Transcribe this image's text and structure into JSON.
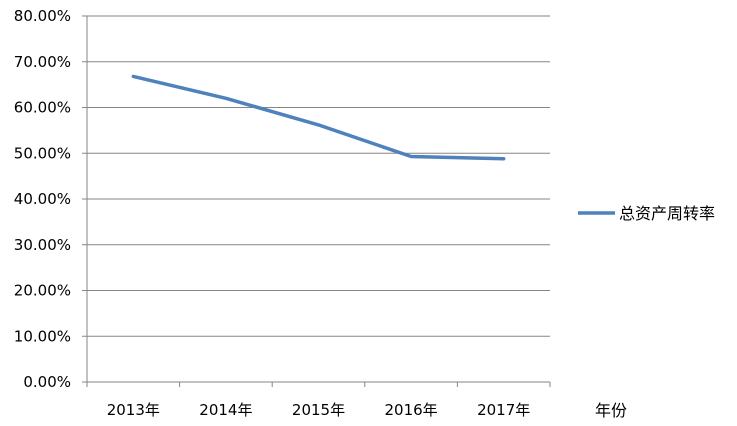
{
  "chart_data": {
    "type": "line",
    "title": "",
    "xlabel": "年份",
    "ylabel": "",
    "categories": [
      "2013年",
      "2014年",
      "2015年",
      "2016年",
      "2017年"
    ],
    "series": [
      {
        "name": "总资产周转率",
        "values": [
          66.8,
          62.0,
          56.2,
          49.3,
          48.8
        ],
        "color": "#4f81bd"
      }
    ],
    "ylim": [
      0,
      80
    ],
    "yticks": [
      0,
      10,
      20,
      30,
      40,
      50,
      60,
      70,
      80
    ],
    "ytick_labels": [
      "0.00%",
      "10.00%",
      "20.00%",
      "30.00%",
      "40.00%",
      "50.00%",
      "60.00%",
      "70.00%",
      "80.00%"
    ],
    "grid": true,
    "legend_position": "right"
  }
}
